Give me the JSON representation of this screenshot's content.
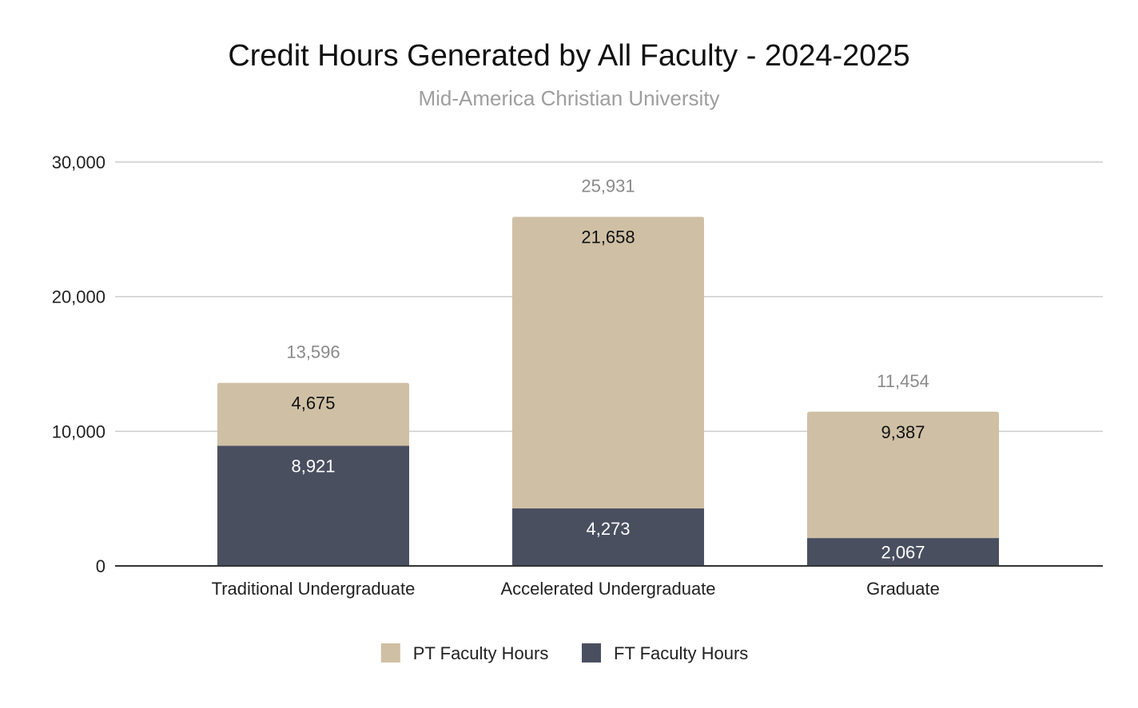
{
  "chart_data": {
    "type": "bar",
    "stacked": true,
    "title": "Credit Hours Generated by All Faculty - 2024-2025",
    "subtitle": "Mid-America Christian University",
    "xlabel": "",
    "ylabel": "",
    "ylim": [
      0,
      30000
    ],
    "yticks": [
      0,
      10000,
      20000,
      30000
    ],
    "ytick_labels": [
      "0",
      "10,000",
      "20,000",
      "30,000"
    ],
    "grid": true,
    "legend_position": "bottom-center",
    "categories": [
      "Traditional Undergraduate",
      "Accelerated Undergraduate",
      "Graduate"
    ],
    "series": [
      {
        "name": "FT Faculty Hours",
        "color": "#4a4f60",
        "label_color": "#ffffff",
        "values": [
          8921,
          4273,
          2067
        ],
        "value_labels": [
          "8,921",
          "4,273",
          "2,067"
        ]
      },
      {
        "name": "PT Faculty Hours",
        "color": "#cfc0a5",
        "label_color": "#111111",
        "values": [
          4675,
          21658,
          9387
        ],
        "value_labels": [
          "4,675",
          "21,658",
          "9,387"
        ]
      }
    ],
    "totals": [
      13596,
      25931,
      11454
    ],
    "total_labels": [
      "13,596",
      "25,931",
      "11,454"
    ],
    "legend_order": [
      "PT Faculty Hours",
      "FT Faculty Hours"
    ],
    "colors": {
      "title": "#111111",
      "subtitle": "#9e9e9e",
      "total_label": "#8a8a8a",
      "grid": "#cccccc",
      "axis": "#333333",
      "tick_label": "#222222"
    }
  }
}
